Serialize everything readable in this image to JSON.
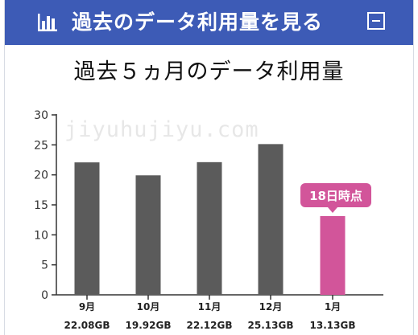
{
  "header": {
    "title": "過去のデータ利用量を見る",
    "icon": "bar-chart-icon",
    "collapse_icon": "minus-icon"
  },
  "watermark": "jiyuhujiyu.com",
  "chart_data": {
    "type": "bar",
    "title": "過去５ヵ月のデータ利用量",
    "categories": [
      "9月",
      "10月",
      "11月",
      "12月",
      "1月"
    ],
    "value_labels": [
      "22.08GB",
      "19.92GB",
      "22.12GB",
      "25.13GB",
      "13.13GB"
    ],
    "values": [
      22.08,
      19.92,
      22.12,
      25.13,
      13.13
    ],
    "ylim": [
      0,
      30
    ],
    "yticks": [
      0,
      5,
      10,
      15,
      20,
      25,
      30
    ],
    "grid": false,
    "colors": {
      "bar": "#5b5b5b",
      "highlight": "#d2559a",
      "header": "#3d5bb6"
    },
    "highlight_index": 4,
    "annotation": "18日時点"
  }
}
